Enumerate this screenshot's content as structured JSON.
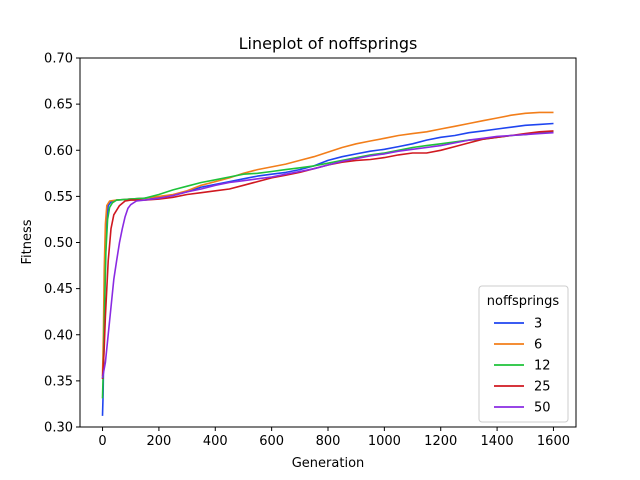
{
  "chart_data": {
    "type": "line",
    "title": "Lineplot of noffsprings",
    "xlabel": "Generation",
    "ylabel": "Fitness",
    "xlim": [
      -80,
      1680
    ],
    "ylim": [
      0.3,
      0.7
    ],
    "xticks": [
      0,
      200,
      400,
      600,
      800,
      1000,
      1200,
      1400,
      1600
    ],
    "xtick_labels": [
      "0",
      "200",
      "400",
      "600",
      "800",
      "1000",
      "1200",
      "1400",
      "1600"
    ],
    "yticks": [
      0.3,
      0.35,
      0.4,
      0.45,
      0.5,
      0.55,
      0.6,
      0.65,
      0.7
    ],
    "ytick_labels": [
      "0.30",
      "0.35",
      "0.40",
      "0.45",
      "0.50",
      "0.55",
      "0.60",
      "0.65",
      "0.70"
    ],
    "grid": false,
    "legend": {
      "title": "noffsprings",
      "placement": "bottom-right"
    },
    "series": [
      {
        "name": "3",
        "color": "#1f45f0",
        "points": [
          [
            0,
            0.312
          ],
          [
            2,
            0.335
          ],
          [
            5,
            0.4
          ],
          [
            10,
            0.48
          ],
          [
            15,
            0.525
          ],
          [
            20,
            0.54
          ],
          [
            30,
            0.544
          ],
          [
            50,
            0.546
          ],
          [
            100,
            0.547
          ],
          [
            150,
            0.548
          ],
          [
            200,
            0.549
          ],
          [
            250,
            0.551
          ],
          [
            300,
            0.555
          ],
          [
            350,
            0.56
          ],
          [
            400,
            0.563
          ],
          [
            450,
            0.566
          ],
          [
            500,
            0.569
          ],
          [
            550,
            0.572
          ],
          [
            600,
            0.574
          ],
          [
            650,
            0.576
          ],
          [
            700,
            0.579
          ],
          [
            750,
            0.583
          ],
          [
            800,
            0.589
          ],
          [
            850,
            0.593
          ],
          [
            900,
            0.596
          ],
          [
            950,
            0.599
          ],
          [
            1000,
            0.601
          ],
          [
            1050,
            0.604
          ],
          [
            1100,
            0.607
          ],
          [
            1150,
            0.611
          ],
          [
            1200,
            0.614
          ],
          [
            1250,
            0.616
          ],
          [
            1300,
            0.619
          ],
          [
            1350,
            0.621
          ],
          [
            1400,
            0.623
          ],
          [
            1450,
            0.625
          ],
          [
            1500,
            0.627
          ],
          [
            1550,
            0.628
          ],
          [
            1600,
            0.629
          ]
        ]
      },
      {
        "name": "6",
        "color": "#f27e1a",
        "points": [
          [
            0,
            0.355
          ],
          [
            3,
            0.4
          ],
          [
            6,
            0.47
          ],
          [
            10,
            0.52
          ],
          [
            15,
            0.54
          ],
          [
            25,
            0.545
          ],
          [
            50,
            0.546
          ],
          [
            100,
            0.547
          ],
          [
            150,
            0.548
          ],
          [
            200,
            0.55
          ],
          [
            250,
            0.552
          ],
          [
            300,
            0.556
          ],
          [
            350,
            0.562
          ],
          [
            400,
            0.566
          ],
          [
            450,
            0.57
          ],
          [
            500,
            0.575
          ],
          [
            550,
            0.579
          ],
          [
            600,
            0.582
          ],
          [
            650,
            0.585
          ],
          [
            700,
            0.589
          ],
          [
            750,
            0.593
          ],
          [
            800,
            0.598
          ],
          [
            850,
            0.603
          ],
          [
            900,
            0.607
          ],
          [
            950,
            0.61
          ],
          [
            1000,
            0.613
          ],
          [
            1050,
            0.616
          ],
          [
            1100,
            0.618
          ],
          [
            1150,
            0.62
          ],
          [
            1200,
            0.623
          ],
          [
            1250,
            0.626
          ],
          [
            1300,
            0.629
          ],
          [
            1350,
            0.632
          ],
          [
            1400,
            0.635
          ],
          [
            1450,
            0.638
          ],
          [
            1500,
            0.64
          ],
          [
            1550,
            0.641
          ],
          [
            1600,
            0.641
          ]
        ]
      },
      {
        "name": "12",
        "color": "#1ec23a",
        "points": [
          [
            0,
            0.331
          ],
          [
            4,
            0.38
          ],
          [
            8,
            0.44
          ],
          [
            12,
            0.49
          ],
          [
            18,
            0.525
          ],
          [
            25,
            0.538
          ],
          [
            35,
            0.543
          ],
          [
            50,
            0.546
          ],
          [
            100,
            0.547
          ],
          [
            150,
            0.548
          ],
          [
            200,
            0.552
          ],
          [
            250,
            0.557
          ],
          [
            300,
            0.561
          ],
          [
            350,
            0.565
          ],
          [
            400,
            0.568
          ],
          [
            450,
            0.571
          ],
          [
            500,
            0.574
          ],
          [
            550,
            0.575
          ],
          [
            600,
            0.577
          ],
          [
            650,
            0.579
          ],
          [
            700,
            0.581
          ],
          [
            750,
            0.583
          ],
          [
            800,
            0.586
          ],
          [
            850,
            0.589
          ],
          [
            900,
            0.592
          ],
          [
            950,
            0.595
          ],
          [
            1000,
            0.597
          ],
          [
            1050,
            0.6
          ],
          [
            1100,
            0.603
          ],
          [
            1150,
            0.605
          ],
          [
            1200,
            0.607
          ],
          [
            1250,
            0.609
          ],
          [
            1300,
            0.611
          ],
          [
            1350,
            0.612
          ],
          [
            1400,
            0.614
          ],
          [
            1450,
            0.616
          ],
          [
            1500,
            0.617
          ],
          [
            1550,
            0.619
          ],
          [
            1600,
            0.62
          ]
        ]
      },
      {
        "name": "25",
        "color": "#d01820",
        "points": [
          [
            0,
            0.352
          ],
          [
            5,
            0.38
          ],
          [
            10,
            0.42
          ],
          [
            20,
            0.48
          ],
          [
            30,
            0.515
          ],
          [
            40,
            0.53
          ],
          [
            60,
            0.54
          ],
          [
            80,
            0.545
          ],
          [
            100,
            0.546
          ],
          [
            150,
            0.546
          ],
          [
            200,
            0.547
          ],
          [
            250,
            0.549
          ],
          [
            300,
            0.552
          ],
          [
            350,
            0.554
          ],
          [
            400,
            0.556
          ],
          [
            450,
            0.558
          ],
          [
            500,
            0.562
          ],
          [
            550,
            0.566
          ],
          [
            600,
            0.57
          ],
          [
            650,
            0.573
          ],
          [
            700,
            0.576
          ],
          [
            750,
            0.58
          ],
          [
            800,
            0.584
          ],
          [
            850,
            0.587
          ],
          [
            900,
            0.589
          ],
          [
            950,
            0.59
          ],
          [
            1000,
            0.592
          ],
          [
            1050,
            0.595
          ],
          [
            1100,
            0.597
          ],
          [
            1150,
            0.597
          ],
          [
            1200,
            0.6
          ],
          [
            1250,
            0.604
          ],
          [
            1300,
            0.608
          ],
          [
            1350,
            0.612
          ],
          [
            1400,
            0.614
          ],
          [
            1450,
            0.616
          ],
          [
            1500,
            0.618
          ],
          [
            1550,
            0.62
          ],
          [
            1600,
            0.621
          ]
        ]
      },
      {
        "name": "50",
        "color": "#8a2be2",
        "points": [
          [
            0,
            0.353
          ],
          [
            10,
            0.37
          ],
          [
            20,
            0.4
          ],
          [
            30,
            0.43
          ],
          [
            40,
            0.46
          ],
          [
            50,
            0.48
          ],
          [
            60,
            0.5
          ],
          [
            70,
            0.515
          ],
          [
            80,
            0.528
          ],
          [
            90,
            0.537
          ],
          [
            100,
            0.541
          ],
          [
            120,
            0.545
          ],
          [
            150,
            0.546
          ],
          [
            200,
            0.548
          ],
          [
            250,
            0.551
          ],
          [
            300,
            0.555
          ],
          [
            350,
            0.558
          ],
          [
            400,
            0.562
          ],
          [
            450,
            0.565
          ],
          [
            500,
            0.567
          ],
          [
            550,
            0.569
          ],
          [
            600,
            0.571
          ],
          [
            650,
            0.574
          ],
          [
            700,
            0.577
          ],
          [
            750,
            0.58
          ],
          [
            800,
            0.584
          ],
          [
            850,
            0.588
          ],
          [
            900,
            0.591
          ],
          [
            950,
            0.594
          ],
          [
            1000,
            0.596
          ],
          [
            1050,
            0.599
          ],
          [
            1100,
            0.601
          ],
          [
            1150,
            0.603
          ],
          [
            1200,
            0.605
          ],
          [
            1250,
            0.608
          ],
          [
            1300,
            0.611
          ],
          [
            1350,
            0.613
          ],
          [
            1400,
            0.615
          ],
          [
            1450,
            0.616
          ],
          [
            1500,
            0.617
          ],
          [
            1550,
            0.618
          ],
          [
            1600,
            0.619
          ]
        ]
      }
    ]
  }
}
